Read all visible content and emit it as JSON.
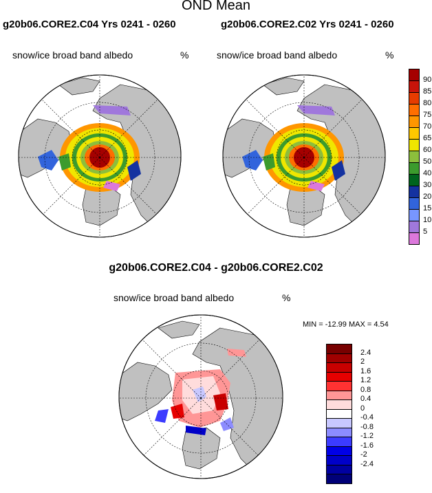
{
  "title": "OND Mean",
  "panels": [
    {
      "run_title": "g20b06.CORE2.C04  Yrs 0241 - 0260",
      "label": "snow/ice broad band albedo",
      "units": "%"
    },
    {
      "run_title": "g20b06.CORE2.C02  Yrs 0241 - 0260",
      "label": "snow/ice broad band albedo",
      "units": "%"
    }
  ],
  "difference": {
    "title": "g20b06.CORE2.C04 - g20b06.CORE2.C02",
    "label": "snow/ice broad band albedo",
    "units": "%",
    "minmax": "MIN = -12.99 MAX =   4.54"
  },
  "colorbar_top": {
    "labels": [
      "90",
      "85",
      "80",
      "75",
      "70",
      "65",
      "60",
      "50",
      "40",
      "30",
      "20",
      "15",
      "10",
      "5"
    ],
    "colors": [
      "#a50000",
      "#c8140a",
      "#e63c00",
      "#ff6e00",
      "#ff9600",
      "#ffc800",
      "#f0e600",
      "#8cbe3c",
      "#3c9b2d",
      "#00641e",
      "#1432a0",
      "#3264dc",
      "#7896ff",
      "#a078dc",
      "#dc78dc"
    ]
  },
  "colorbar_diff": {
    "labels": [
      "2.4",
      "2",
      "1.6",
      "1.2",
      "0.8",
      "0.4",
      "0",
      "-0.4",
      "-0.8",
      "-1.2",
      "-1.6",
      "-2",
      "-2.4"
    ],
    "colors": [
      "#780000",
      "#a00000",
      "#c80000",
      "#e60000",
      "#ff3232",
      "#ff9696",
      "#ffdcdc",
      "#ffffff",
      "#c8c8ff",
      "#8c8cff",
      "#3c3cff",
      "#0000e6",
      "#0000c8",
      "#0000a0",
      "#000078"
    ]
  }
}
